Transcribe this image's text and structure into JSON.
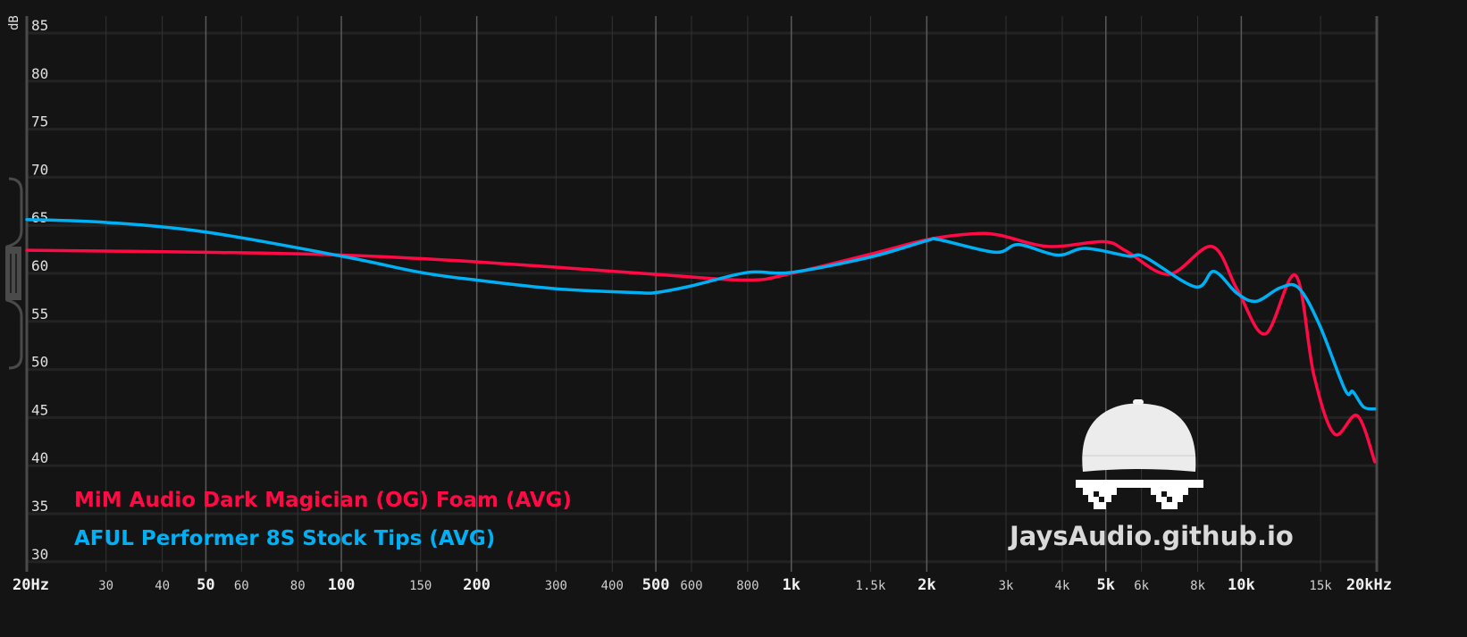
{
  "chart_data": {
    "type": "line",
    "title": "",
    "xlabel": "",
    "ylabel": "dB",
    "xscale": "log",
    "xlim": [
      20,
      20000
    ],
    "ylim": [
      30,
      85
    ],
    "grid": true,
    "legend_position": "bottom-left",
    "y_ticks": [
      85,
      80,
      75,
      70,
      65,
      60,
      55,
      50,
      45,
      40,
      35,
      30
    ],
    "x_ticks": [
      {
        "f": 20,
        "label": "20Hz",
        "major": true
      },
      {
        "f": 30,
        "label": "30",
        "major": false
      },
      {
        "f": 40,
        "label": "40",
        "major": false
      },
      {
        "f": 50,
        "label": "50",
        "major": true
      },
      {
        "f": 60,
        "label": "60",
        "major": false
      },
      {
        "f": 80,
        "label": "80",
        "major": false
      },
      {
        "f": 100,
        "label": "100",
        "major": true
      },
      {
        "f": 150,
        "label": "150",
        "major": false
      },
      {
        "f": 200,
        "label": "200",
        "major": true
      },
      {
        "f": 300,
        "label": "300",
        "major": false
      },
      {
        "f": 400,
        "label": "400",
        "major": false
      },
      {
        "f": 500,
        "label": "500",
        "major": true
      },
      {
        "f": 600,
        "label": "600",
        "major": false
      },
      {
        "f": 800,
        "label": "800",
        "major": false
      },
      {
        "f": 1000,
        "label": "1k",
        "major": true
      },
      {
        "f": 1500,
        "label": "1.5k",
        "major": false
      },
      {
        "f": 2000,
        "label": "2k",
        "major": true
      },
      {
        "f": 3000,
        "label": "3k",
        "major": false
      },
      {
        "f": 4000,
        "label": "4k",
        "major": false
      },
      {
        "f": 5000,
        "label": "5k",
        "major": true
      },
      {
        "f": 6000,
        "label": "6k",
        "major": false
      },
      {
        "f": 8000,
        "label": "8k",
        "major": false
      },
      {
        "f": 10000,
        "label": "10k",
        "major": true
      },
      {
        "f": 15000,
        "label": "15k",
        "major": false
      },
      {
        "f": 20000,
        "label": "20kHz",
        "major": true
      }
    ],
    "series": [
      {
        "name": "MiM Audio Dark Magician (OG) Foam (AVG)",
        "color": "#ff0a45",
        "x": [
          20,
          50,
          100,
          200,
          500,
          800,
          1000,
          1500,
          2000,
          2500,
          2885,
          3725,
          4950,
          5560,
          6900,
          8600,
          9800,
          11300,
          13200,
          14500,
          16100,
          18100,
          19800
        ],
        "y": [
          62.4,
          62.2,
          61.9,
          61.2,
          59.9,
          59.3,
          60.0,
          62.0,
          63.5,
          64.1,
          64.0,
          62.8,
          63.3,
          62.3,
          59.9,
          62.8,
          58.3,
          53.7,
          59.8,
          49.4,
          43.3,
          45.2,
          40.4
        ]
      },
      {
        "name": "AFUL Performer 8S Stock Tips (AVG)",
        "color": "#00b0f4",
        "x": [
          20,
          30,
          50,
          100,
          150,
          200,
          300,
          450,
          500,
          600,
          800,
          1000,
          1500,
          2000,
          2133,
          2840,
          3200,
          3900,
          4500,
          5600,
          6100,
          7900,
          8700,
          9800,
          10800,
          12200,
          13400,
          14900,
          17000,
          17700,
          18700,
          19800
        ],
        "y": [
          65.6,
          65.3,
          64.3,
          61.8,
          60.1,
          59.3,
          58.4,
          58.0,
          58.0,
          58.7,
          60.1,
          60.1,
          61.7,
          63.4,
          63.5,
          62.2,
          63.0,
          61.9,
          62.6,
          61.8,
          61.7,
          58.6,
          60.2,
          57.9,
          57.1,
          58.5,
          58.5,
          54.7,
          47.9,
          47.7,
          46.1,
          45.9
        ]
      }
    ]
  },
  "watermark": {
    "site": "JaysAudio.github.io"
  }
}
